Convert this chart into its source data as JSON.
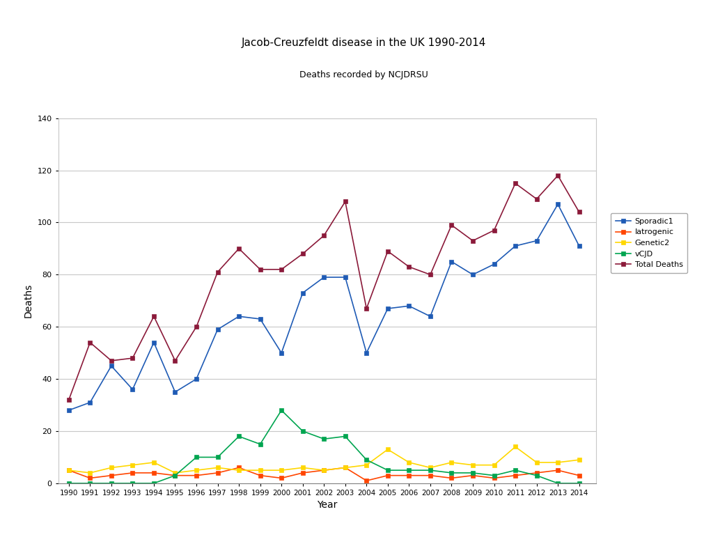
{
  "title": "Jacob-Creuzfeldt disease in the UK 1990-2014",
  "subtitle": "Deaths recorded by NCJDRSU",
  "xlabel": "Year",
  "ylabel": "Deaths",
  "years": [
    1990,
    1991,
    1992,
    1993,
    1994,
    1995,
    1996,
    1997,
    1998,
    1999,
    2000,
    2001,
    2002,
    2003,
    2004,
    2005,
    2006,
    2007,
    2008,
    2009,
    2010,
    2011,
    2012,
    2013,
    2014
  ],
  "Sporadic1": [
    28,
    31,
    45,
    36,
    54,
    35,
    40,
    59,
    64,
    63,
    50,
    73,
    79,
    79,
    50,
    67,
    68,
    64,
    85,
    80,
    84,
    91,
    93,
    107,
    91
  ],
  "Iatrogenic": [
    5,
    2,
    3,
    4,
    4,
    3,
    3,
    4,
    6,
    3,
    2,
    4,
    5,
    6,
    1,
    3,
    3,
    3,
    2,
    3,
    2,
    3,
    4,
    5,
    3
  ],
  "Genetic2": [
    5,
    4,
    6,
    7,
    8,
    4,
    5,
    6,
    5,
    5,
    5,
    6,
    5,
    6,
    7,
    13,
    8,
    6,
    8,
    7,
    7,
    14,
    8,
    8,
    9
  ],
  "vCJD": [
    0,
    0,
    0,
    0,
    0,
    3,
    10,
    10,
    18,
    15,
    28,
    20,
    17,
    18,
    9,
    5,
    5,
    5,
    4,
    4,
    3,
    5,
    3,
    0,
    0
  ],
  "Total Deaths": [
    32,
    54,
    47,
    48,
    64,
    47,
    60,
    81,
    90,
    82,
    82,
    88,
    95,
    108,
    67,
    89,
    83,
    80,
    99,
    93,
    97,
    115,
    109,
    118,
    104
  ],
  "colors": {
    "Sporadic1": "#1F5BB5",
    "Iatrogenic": "#FF4500",
    "Genetic2": "#FFD700",
    "vCJD": "#00A550",
    "Total Deaths": "#8B1A3A"
  },
  "ylim": [
    0,
    140
  ],
  "yticks": [
    0,
    20,
    40,
    60,
    80,
    100,
    120,
    140
  ],
  "bg_color": "#FFFFFF",
  "grid_color": "#C8C8C8"
}
